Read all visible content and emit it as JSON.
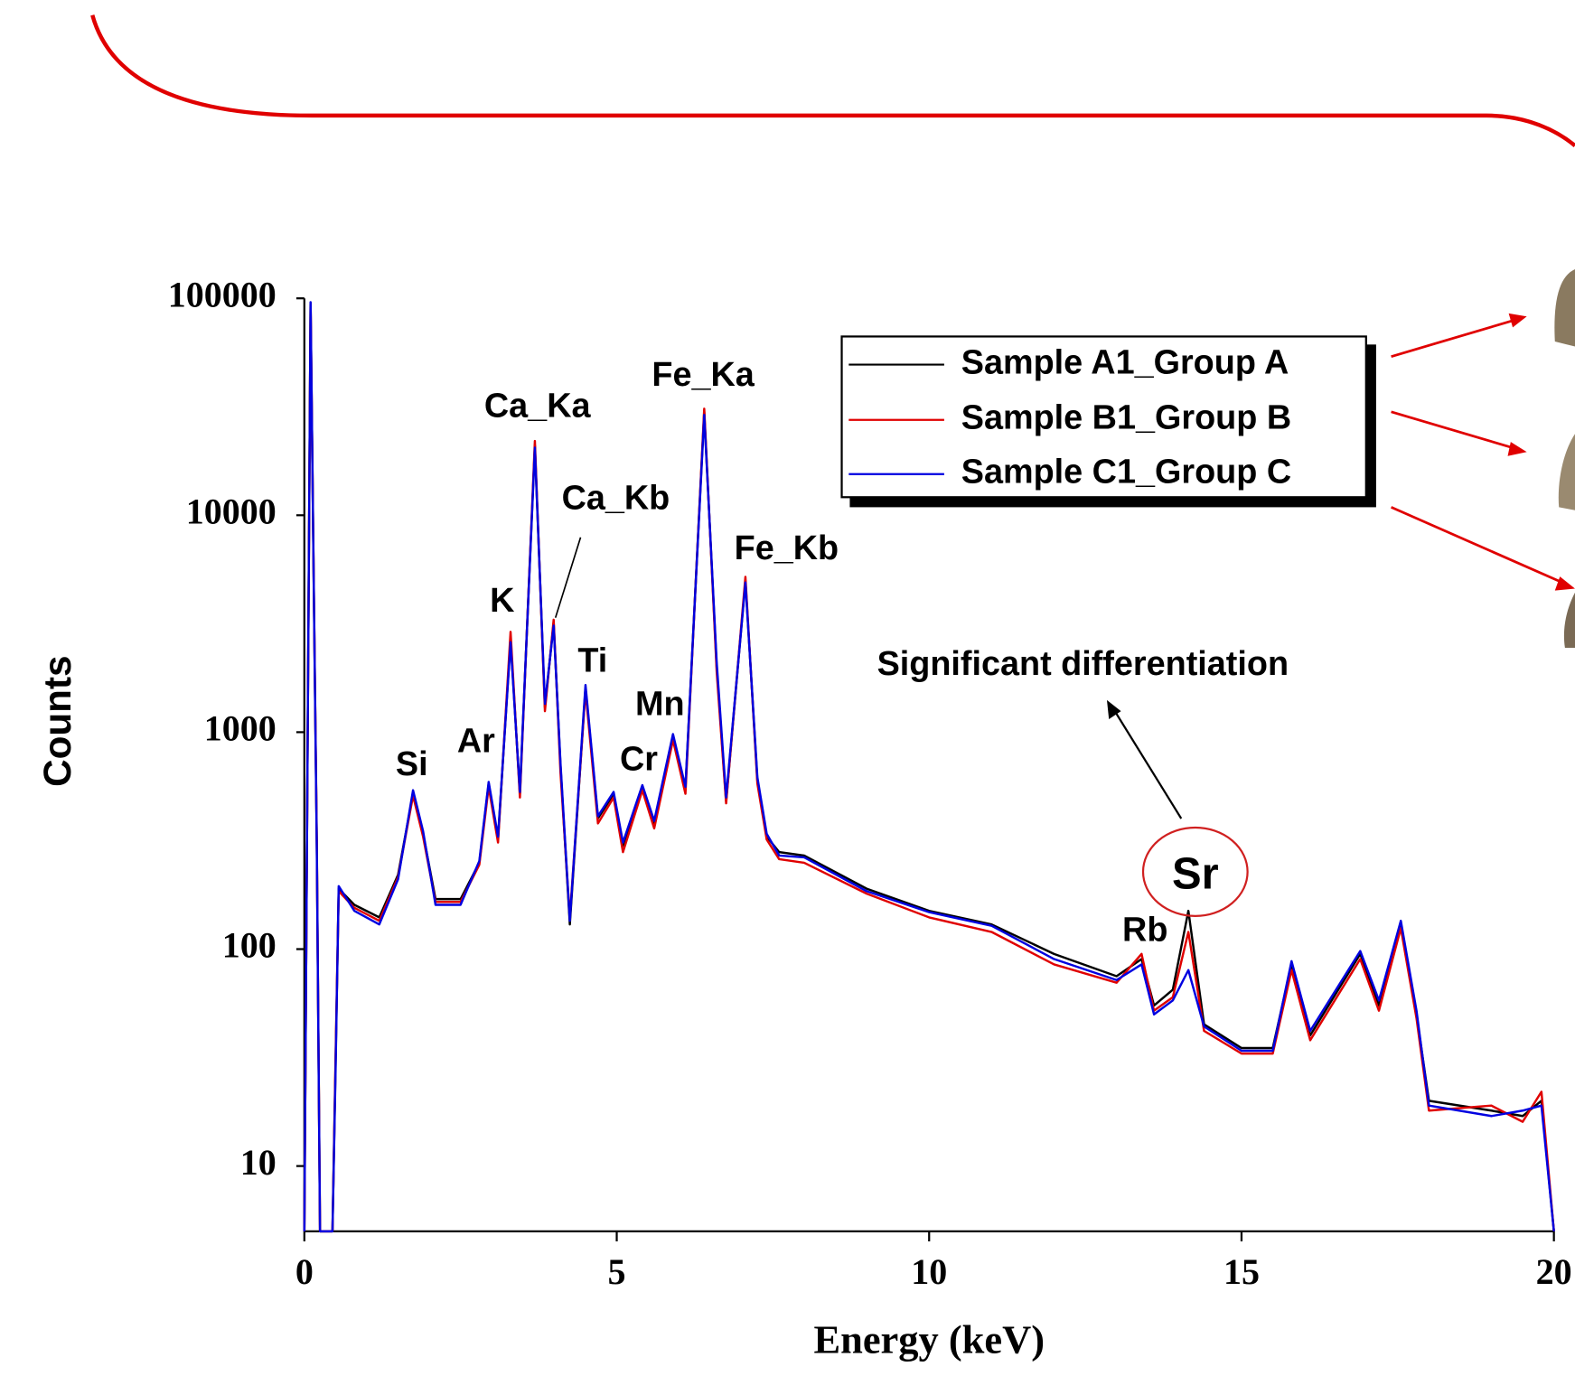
{
  "chart_data": {
    "type": "line",
    "xlabel": "Energy (keV)",
    "ylabel": "Counts",
    "xlim": [
      0,
      20
    ],
    "ylim": [
      5,
      100000
    ],
    "yscale": "log",
    "xticks": [
      0,
      5,
      10,
      15,
      20
    ],
    "yticks": [
      10,
      100,
      1000,
      10000,
      100000
    ],
    "x": [
      0,
      0.1,
      0.15,
      0.2,
      0.25,
      0.45,
      0.5,
      0.55,
      0.8,
      1.2,
      1.5,
      1.74,
      1.9,
      2.1,
      2.5,
      2.8,
      2.95,
      3.1,
      3.3,
      3.45,
      3.69,
      3.85,
      3.99,
      4.1,
      4.25,
      4.5,
      4.7,
      4.95,
      5.1,
      5.41,
      5.6,
      5.9,
      6.1,
      6.4,
      6.6,
      6.75,
      7.06,
      7.25,
      7.4,
      7.6,
      8,
      9,
      10,
      11,
      12,
      13,
      13.4,
      13.6,
      13.9,
      14.15,
      14.4,
      15,
      15.5,
      15.8,
      16.1,
      16.9,
      17.2,
      17.55,
      17.8,
      18,
      19,
      19.5,
      19.8,
      20
    ],
    "series": [
      {
        "name": "Sample A1_Group A",
        "color": "#000000",
        "values": [
          5,
          95000,
          5000,
          300,
          5,
          5,
          30,
          190,
          160,
          140,
          220,
          520,
          340,
          170,
          170,
          250,
          580,
          320,
          2700,
          520,
          21000,
          1300,
          3200,
          700,
          130,
          1600,
          400,
          520,
          300,
          560,
          380,
          950,
          550,
          30000,
          2000,
          480,
          5000,
          600,
          330,
          280,
          270,
          190,
          150,
          130,
          95,
          75,
          90,
          55,
          65,
          150,
          45,
          35,
          35,
          85,
          40,
          95,
          55,
          130,
          50,
          20,
          18,
          17,
          20,
          5
        ]
      },
      {
        "name": "Sample B1_Group B",
        "color": "#e00000",
        "values": [
          5,
          94000,
          5200,
          310,
          5,
          5,
          32,
          185,
          155,
          135,
          215,
          510,
          330,
          165,
          165,
          245,
          560,
          310,
          2900,
          500,
          22000,
          1250,
          3300,
          650,
          140,
          1550,
          380,
          500,
          280,
          540,
          360,
          920,
          520,
          31000,
          1900,
          470,
          5200,
          580,
          320,
          260,
          250,
          180,
          140,
          120,
          85,
          70,
          95,
          52,
          60,
          120,
          42,
          33,
          33,
          80,
          38,
          90,
          52,
          125,
          48,
          18,
          19,
          16,
          22,
          5
        ]
      },
      {
        "name": "Sample C1_Group C",
        "color": "#0000e0",
        "values": [
          5,
          96000,
          5100,
          290,
          5,
          5,
          28,
          195,
          150,
          130,
          210,
          540,
          350,
          160,
          160,
          255,
          590,
          330,
          2600,
          530,
          20500,
          1350,
          3100,
          720,
          135,
          1650,
          410,
          530,
          310,
          570,
          390,
          980,
          560,
          29000,
          2100,
          500,
          4900,
          620,
          340,
          270,
          265,
          185,
          148,
          128,
          90,
          72,
          85,
          50,
          58,
          80,
          44,
          34,
          34,
          88,
          42,
          98,
          58,
          135,
          52,
          19,
          17,
          18,
          19,
          5
        ]
      }
    ],
    "peak_labels": [
      "Si",
      "Ar",
      "K",
      "Ca_Ka",
      "Ca_Kb",
      "Ti",
      "Cr",
      "Mn",
      "Fe_Ka",
      "Fe_Kb",
      "Rb",
      "Sr"
    ],
    "annotation": "Significant differentiation"
  }
}
